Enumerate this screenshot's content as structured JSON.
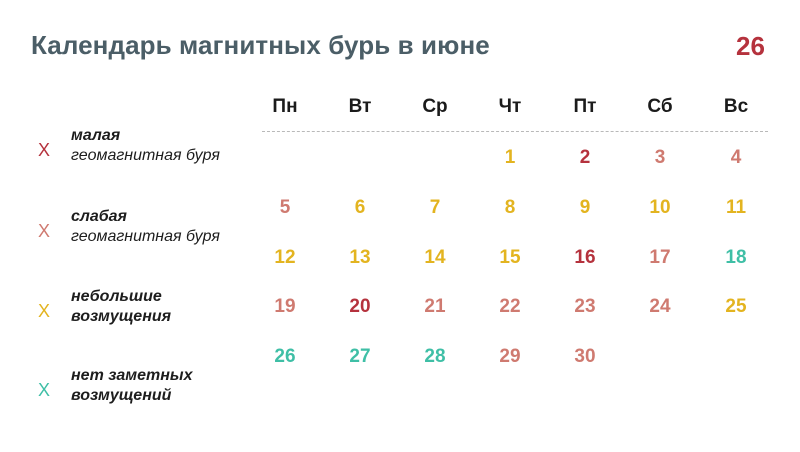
{
  "title": "Календарь магнитных бурь в июне",
  "logo": {
    "text": "26",
    "color": "#b5323d"
  },
  "colors": {
    "malaya": "#b5323d",
    "slabaya": "#cf7a70",
    "nebolshie": "#e3b420",
    "net": "#3fbfa6"
  },
  "legend": [
    {
      "marker": "X",
      "bold": "малая",
      "normal": "геомагнитная буря",
      "level": "malaya"
    },
    {
      "marker": "X",
      "bold": "слабая",
      "normal": "геомагнитная буря",
      "level": "slabaya"
    },
    {
      "marker": "X",
      "bold": "небольшие возмущения",
      "normal": "",
      "level": "nebolshie"
    },
    {
      "marker": "X",
      "bold": "нет заметных возмущений",
      "normal": "",
      "level": "net"
    }
  ],
  "weekdays": [
    "Пн",
    "Вт",
    "Ср",
    "Чт",
    "Пт",
    "Сб",
    "Вс"
  ],
  "days": [
    {
      "day": "1",
      "weekday": "Чт",
      "level": "nebolshie"
    },
    {
      "day": "2",
      "weekday": "Пт",
      "level": "malaya"
    },
    {
      "day": "3",
      "weekday": "Сб",
      "level": "slabaya"
    },
    {
      "day": "4",
      "weekday": "Вс",
      "level": "slabaya"
    },
    {
      "day": "5",
      "weekday": "Пн",
      "level": "slabaya"
    },
    {
      "day": "6",
      "weekday": "Вт",
      "level": "nebolshie"
    },
    {
      "day": "7",
      "weekday": "Ср",
      "level": "nebolshie"
    },
    {
      "day": "8",
      "weekday": "Чт",
      "level": "nebolshie"
    },
    {
      "day": "9",
      "weekday": "Пт",
      "level": "nebolshie"
    },
    {
      "day": "10",
      "weekday": "Сб",
      "level": "nebolshie"
    },
    {
      "day": "11",
      "weekday": "Вс",
      "level": "nebolshie"
    },
    {
      "day": "12",
      "weekday": "Пн",
      "level": "nebolshie"
    },
    {
      "day": "13",
      "weekday": "Вт",
      "level": "nebolshie"
    },
    {
      "day": "14",
      "weekday": "Ср",
      "level": "nebolshie"
    },
    {
      "day": "15",
      "weekday": "Чт",
      "level": "nebolshie"
    },
    {
      "day": "16",
      "weekday": "Пт",
      "level": "malaya"
    },
    {
      "day": "17",
      "weekday": "Сб",
      "level": "slabaya"
    },
    {
      "day": "18",
      "weekday": "Вс",
      "level": "net"
    },
    {
      "day": "19",
      "weekday": "Пн",
      "level": "slabaya"
    },
    {
      "day": "20",
      "weekday": "Вт",
      "level": "malaya"
    },
    {
      "day": "21",
      "weekday": "Ср",
      "level": "slabaya"
    },
    {
      "day": "22",
      "weekday": "Чт",
      "level": "slabaya"
    },
    {
      "day": "23",
      "weekday": "Пт",
      "level": "slabaya"
    },
    {
      "day": "24",
      "weekday": "Сб",
      "level": "slabaya"
    },
    {
      "day": "25",
      "weekday": "Вс",
      "level": "nebolshie"
    },
    {
      "day": "26",
      "weekday": "Пн",
      "level": "net"
    },
    {
      "day": "27",
      "weekday": "Вт",
      "level": "net"
    },
    {
      "day": "28",
      "weekday": "Ср",
      "level": "net"
    },
    {
      "day": "29",
      "weekday": "Чт",
      "level": "slabaya"
    },
    {
      "day": "30",
      "weekday": "Пт",
      "level": "slabaya"
    }
  ]
}
